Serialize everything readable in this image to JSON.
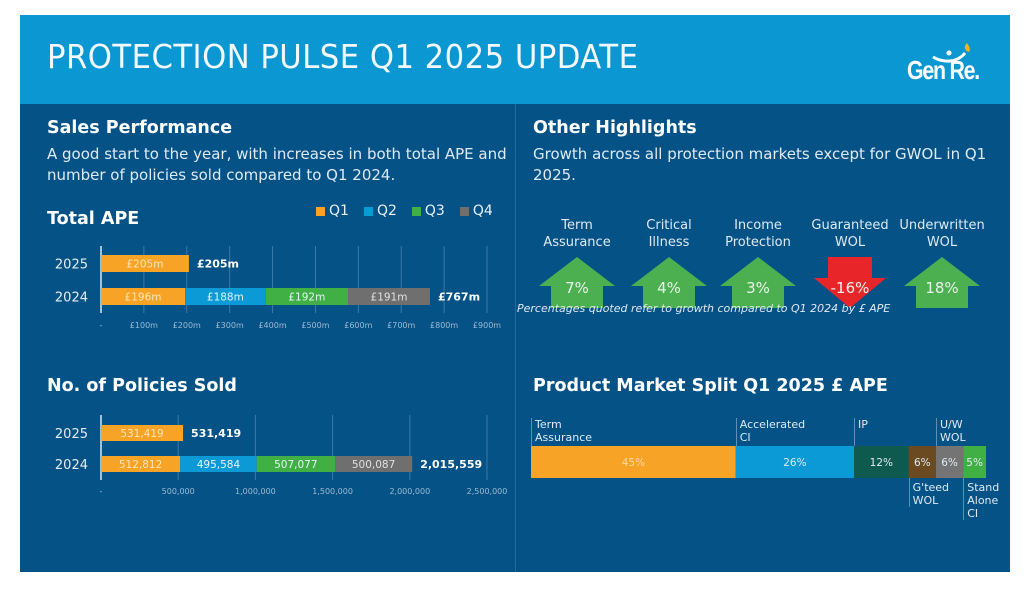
{
  "header": {
    "title": "PROTECTION PULSE Q1 2025 UPDATE",
    "logo_text": "Gen Re."
  },
  "colors": {
    "background": "#055287",
    "header": "#0a97d2",
    "q1": "#f7a325",
    "q2": "#0c9ad6",
    "q3": "#40b045",
    "q4": "#6f6f6f",
    "up": "#4caf50",
    "down": "#e8262a"
  },
  "sales": {
    "heading": "Sales Performance",
    "text": "A good start to the year, with increases in both total APE and number of policies sold compared to Q1 2024."
  },
  "highlights": {
    "heading": "Other Highlights",
    "text": "Growth across all protection markets except for GWOL in Q1 2025.",
    "items": [
      {
        "label": "Term Assurance",
        "value": "7%",
        "direction": "up"
      },
      {
        "label": "Critical Illness",
        "value": "4%",
        "direction": "up"
      },
      {
        "label": "Income Protection",
        "value": "3%",
        "direction": "up"
      },
      {
        "label": "Guaranteed WOL",
        "value": "-16%",
        "direction": "down"
      },
      {
        "label": "Underwritten WOL",
        "value": "18%",
        "direction": "up"
      }
    ],
    "footnote": "Percentages quoted refer to growth compared to Q1 2024 by £ APE"
  },
  "chart_data": [
    {
      "type": "bar",
      "orientation": "horizontal",
      "stacked": true,
      "title": "Total APE",
      "categories": [
        "2025",
        "2024"
      ],
      "series": [
        {
          "name": "Q1",
          "values": [
            205,
            196
          ],
          "labels": [
            "£205m",
            "£196m"
          ]
        },
        {
          "name": "Q2",
          "values": [
            0,
            188
          ],
          "labels": [
            "",
            "£188m"
          ]
        },
        {
          "name": "Q3",
          "values": [
            0,
            192
          ],
          "labels": [
            "",
            "£192m"
          ]
        },
        {
          "name": "Q4",
          "values": [
            0,
            191
          ],
          "labels": [
            "",
            "£191m"
          ]
        }
      ],
      "totals": [
        "£205m",
        "£767m"
      ],
      "xlim": [
        0,
        900
      ],
      "xticks": [
        0,
        100,
        200,
        300,
        400,
        500,
        600,
        700,
        800,
        900
      ],
      "xtick_labels": [
        "-",
        "£100m",
        "£200m",
        "£300m",
        "£400m",
        "£500m",
        "£600m",
        "£700m",
        "£800m",
        "£900m"
      ],
      "legend": [
        "Q1",
        "Q2",
        "Q3",
        "Q4"
      ],
      "legend_position": "top-right",
      "grid": true,
      "xlabel": "",
      "ylabel": ""
    },
    {
      "type": "bar",
      "orientation": "horizontal",
      "stacked": true,
      "title": "No. of Policies Sold",
      "categories": [
        "2025",
        "2024"
      ],
      "series": [
        {
          "name": "Q1",
          "values": [
            531419,
            512812
          ],
          "labels": [
            "531,419",
            "512,812"
          ]
        },
        {
          "name": "Q2",
          "values": [
            0,
            495584
          ],
          "labels": [
            "",
            "495,584"
          ]
        },
        {
          "name": "Q3",
          "values": [
            0,
            507077
          ],
          "labels": [
            "",
            "507,077"
          ]
        },
        {
          "name": "Q4",
          "values": [
            0,
            500087
          ],
          "labels": [
            "",
            "500,087"
          ]
        }
      ],
      "totals": [
        "531,419",
        "2,015,559"
      ],
      "xlim": [
        0,
        2500000
      ],
      "xticks": [
        0,
        500000,
        1000000,
        1500000,
        2000000,
        2500000
      ],
      "xtick_labels": [
        "-",
        "500,000",
        "1,000,000",
        "1,500,000",
        "2,000,000",
        "2,500,000"
      ],
      "grid": true,
      "xlabel": "",
      "ylabel": ""
    },
    {
      "type": "bar",
      "orientation": "horizontal",
      "stacked": true,
      "title": "Product Market Split Q1 2025 £ APE",
      "segments": [
        {
          "name": "Term Assurance",
          "value": 45,
          "label": "45%",
          "color": "#f7a325",
          "label_position": "above"
        },
        {
          "name": "Accelerated CI",
          "value": 26,
          "label": "26%",
          "color": "#0c9ad6",
          "label_position": "above"
        },
        {
          "name": "IP",
          "value": 12,
          "label": "12%",
          "color": "#0f5a4e",
          "label_position": "above"
        },
        {
          "name": "G'teed WOL",
          "value": 6,
          "label": "6%",
          "color": "#6b4a22",
          "label_position": "below"
        },
        {
          "name": "U/W WOL",
          "value": 6,
          "label": "6%",
          "color": "#747474",
          "label_position": "above"
        },
        {
          "name": "Stand Alone CI",
          "value": 5,
          "label": "5%",
          "color": "#40b045",
          "label_position": "below"
        }
      ]
    }
  ]
}
